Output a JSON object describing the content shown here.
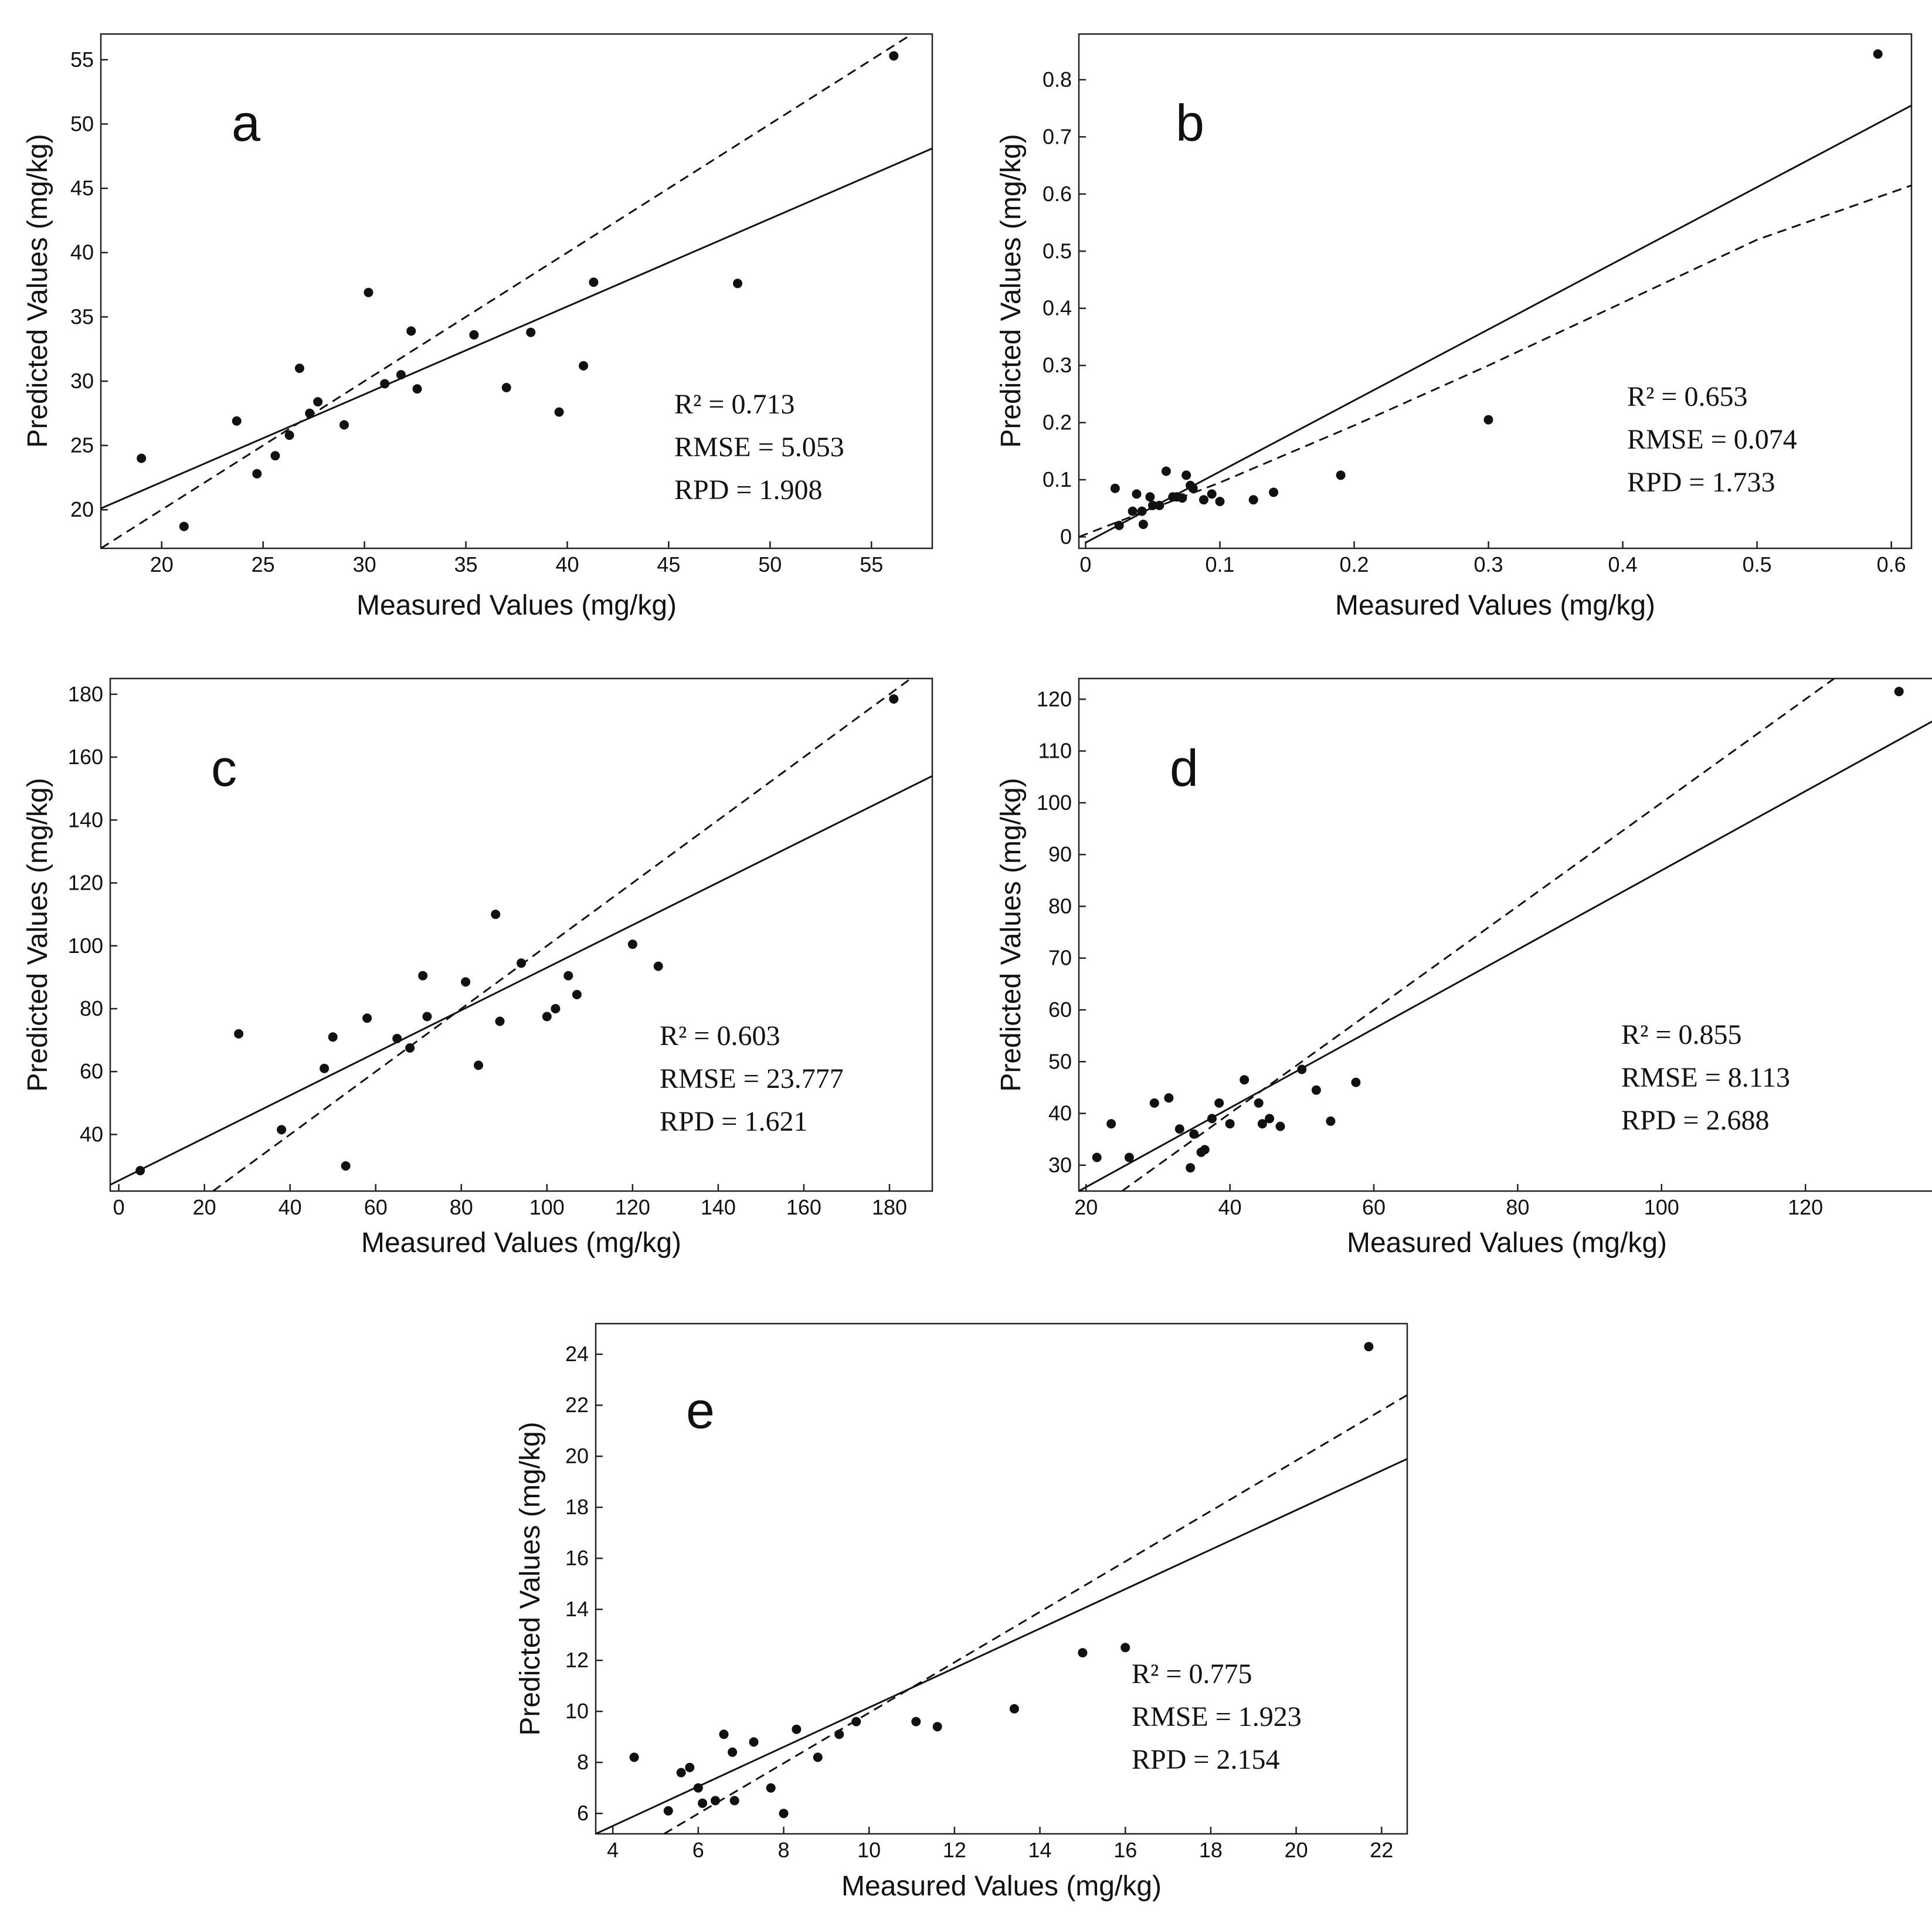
{
  "chart_data": [
    {
      "type": "scatter",
      "panel": "a",
      "xlabel": "Measured Values (mg/kg)",
      "ylabel": "Predicted Values (mg/kg)",
      "xlim": [
        17,
        58
      ],
      "ylim": [
        17,
        57
      ],
      "xticks": [
        20,
        25,
        30,
        35,
        40,
        45,
        50,
        55
      ],
      "yticks": [
        20,
        25,
        30,
        35,
        40,
        45,
        50,
        55
      ],
      "tick_labels_x": [
        "20",
        "25",
        "30",
        "35",
        "40",
        "45",
        "50",
        "55"
      ],
      "tick_labels_y": [
        "20",
        "25",
        "30",
        "35",
        "40",
        "45",
        "50",
        "55"
      ],
      "stats": {
        "r2": "R² = 0.713",
        "rmse": "RMSE = 5.053",
        "rpd": "RPD = 1.908"
      },
      "fit_line": [
        [
          17,
          20.1
        ],
        [
          58,
          48.1
        ]
      ],
      "dashed_line": [
        [
          17,
          17
        ],
        [
          58,
          58
        ]
      ],
      "x": [
        19.0,
        21.1,
        23.7,
        24.7,
        25.6,
        26.3,
        26.8,
        27.3,
        27.7,
        29.0,
        30.2,
        31.0,
        31.8,
        32.3,
        32.6,
        35.4,
        37.0,
        38.2,
        39.6,
        40.8,
        41.3,
        48.4,
        56.1
      ],
      "y": [
        24.0,
        18.7,
        26.9,
        22.8,
        24.2,
        25.8,
        31.0,
        27.5,
        28.4,
        26.6,
        36.9,
        29.8,
        30.5,
        33.9,
        29.4,
        33.6,
        29.5,
        33.8,
        27.6,
        31.2,
        37.7,
        37.6,
        55.3
      ]
    },
    {
      "type": "scatter",
      "panel": "b",
      "xlabel": "Measured Values (mg/kg)",
      "ylabel": "Predicted Values (mg/kg)",
      "xlim": [
        -0.005,
        0.615
      ],
      "ylim": [
        -0.02,
        0.88
      ],
      "xticks": [
        0,
        0.1,
        0.2,
        0.3,
        0.4,
        0.5,
        0.6
      ],
      "yticks": [
        0,
        0.1,
        0.2,
        0.3,
        0.4,
        0.5,
        0.6,
        0.7,
        0.8
      ],
      "tick_labels_x": [
        "0",
        "0.1",
        "0.2",
        "0.3",
        "0.4",
        "0.5",
        "0.6"
      ],
      "tick_labels_y": [
        "0",
        "0.1",
        "0.2",
        "0.3",
        "0.4",
        "0.5",
        "0.6",
        "0.7",
        "0.8"
      ],
      "stats": {
        "r2": "R² = 0.653",
        "rmse": "RMSE = 0.074",
        "rpd": "RPD = 1.733"
      },
      "fit_line": [
        [
          0,
          -0.01
        ],
        [
          0.615,
          0.755
        ]
      ],
      "dashed_line": [
        [
          -0.005,
          0.0
        ],
        [
          0.1,
          0.095
        ],
        [
          0.2,
          0.195
        ],
        [
          0.3,
          0.3
        ],
        [
          0.4,
          0.41
        ],
        [
          0.5,
          0.52
        ],
        [
          0.615,
          0.615
        ]
      ],
      "x": [
        0.022,
        0.025,
        0.035,
        0.038,
        0.042,
        0.043,
        0.048,
        0.05,
        0.055,
        0.06,
        0.065,
        0.068,
        0.072,
        0.075,
        0.078,
        0.08,
        0.088,
        0.094,
        0.1,
        0.125,
        0.14,
        0.19,
        0.3,
        0.59
      ],
      "y": [
        0.085,
        0.02,
        0.045,
        0.075,
        0.045,
        0.022,
        0.07,
        0.055,
        0.055,
        0.115,
        0.07,
        0.07,
        0.068,
        0.108,
        0.09,
        0.085,
        0.065,
        0.075,
        0.062,
        0.065,
        0.078,
        0.108,
        0.205,
        0.845
      ]
    },
    {
      "type": "scatter",
      "panel": "c",
      "xlabel": "Measured Values (mg/kg)",
      "ylabel": "Predicted Values (mg/kg)",
      "xlim": [
        -2,
        190
      ],
      "ylim": [
        22,
        185
      ],
      "xticks": [
        0,
        20,
        40,
        60,
        80,
        100,
        120,
        140,
        160,
        180
      ],
      "yticks": [
        40,
        60,
        80,
        100,
        120,
        140,
        160,
        180
      ],
      "tick_labels_x": [
        "0",
        "20",
        "40",
        "60",
        "80",
        "100",
        "120",
        "140",
        "160",
        "180"
      ],
      "tick_labels_y": [
        "40",
        "60",
        "80",
        "100",
        "120",
        "140",
        "160",
        "180"
      ],
      "stats": {
        "r2": "R² = 0.603",
        "rmse": "RMSE = 23.777",
        "rpd": "RPD = 1.621"
      },
      "fit_line": [
        [
          -2,
          24
        ],
        [
          190,
          154
        ]
      ],
      "dashed_line": [
        [
          22,
          22
        ],
        [
          190,
          190
        ]
      ],
      "x": [
        5,
        28,
        38,
        48,
        50,
        53,
        58,
        65,
        68,
        71,
        72,
        81,
        84,
        88,
        89,
        94,
        100,
        102,
        105,
        107,
        120,
        126,
        181
      ],
      "y": [
        28.5,
        72,
        41.5,
        61,
        71,
        30,
        77,
        70.5,
        67.5,
        90.5,
        77.5,
        88.5,
        62,
        110,
        76,
        94.5,
        77.5,
        80,
        90.5,
        84.5,
        100.5,
        93.5,
        178.5
      ]
    },
    {
      "type": "scatter",
      "panel": "d",
      "xlabel": "Measured Values (mg/kg)",
      "ylabel": "Predicted Values (mg/kg)",
      "xlim": [
        19,
        138
      ],
      "ylim": [
        25,
        124
      ],
      "xticks": [
        20,
        40,
        60,
        80,
        100,
        120
      ],
      "yticks": [
        30,
        40,
        50,
        60,
        70,
        80,
        90,
        100,
        110,
        120
      ],
      "tick_labels_x": [
        "20",
        "40",
        "60",
        "80",
        "100",
        "120"
      ],
      "tick_labels_y": [
        "30",
        "40",
        "50",
        "60",
        "70",
        "80",
        "90",
        "100",
        "110",
        "120"
      ],
      "stats": {
        "r2": "R² = 0.855",
        "rmse": "RMSE = 8.113",
        "rpd": "RPD = 2.688"
      },
      "fit_line": [
        [
          19,
          25
        ],
        [
          138,
          116
        ]
      ],
      "dashed_line": [
        [
          25,
          25
        ],
        [
          124,
          124
        ]
      ],
      "x": [
        21.5,
        23.5,
        26,
        29.5,
        31.5,
        33,
        34.5,
        35,
        36,
        36.5,
        37.5,
        38.5,
        40,
        42,
        44,
        44.5,
        45.5,
        47,
        50,
        52,
        54,
        57.5,
        133
      ],
      "y": [
        31.5,
        38,
        31.5,
        42,
        43,
        37,
        29.5,
        36,
        32.5,
        33,
        39,
        42,
        38,
        46.5,
        42,
        38,
        39,
        37.5,
        48.5,
        44.5,
        38.5,
        46,
        121.5
      ]
    },
    {
      "type": "scatter",
      "panel": "e",
      "xlabel": "Measured Values (mg/kg)",
      "ylabel": "Predicted Values (mg/kg)",
      "xlim": [
        3.6,
        22.6
      ],
      "ylim": [
        5.2,
        25.2
      ],
      "xticks": [
        4,
        6,
        8,
        10,
        12,
        14,
        16,
        18,
        20,
        22
      ],
      "yticks": [
        6,
        8,
        10,
        12,
        14,
        16,
        18,
        20,
        22,
        24
      ],
      "tick_labels_x": [
        "4",
        "6",
        "8",
        "10",
        "12",
        "14",
        "16",
        "18",
        "20",
        "22"
      ],
      "tick_labels_y": [
        "6",
        "8",
        "10",
        "12",
        "14",
        "16",
        "18",
        "20",
        "22",
        "24"
      ],
      "stats": {
        "r2": "R² = 0.775",
        "rmse": "RMSE = 1.923",
        "rpd": "RPD = 2.154"
      },
      "fit_line": [
        [
          3.6,
          5.2
        ],
        [
          22.6,
          19.9
        ]
      ],
      "dashed_line": [
        [
          5.2,
          5.2
        ],
        [
          22.6,
          22.4
        ]
      ],
      "x": [
        4.5,
        5.3,
        5.6,
        5.8,
        6.0,
        6.1,
        6.4,
        6.6,
        6.8,
        6.85,
        7.3,
        7.7,
        8.0,
        8.3,
        8.8,
        9.3,
        9.7,
        11.1,
        11.6,
        13.4,
        15.0,
        16.0,
        21.7
      ],
      "y": [
        8.2,
        6.1,
        7.6,
        7.8,
        7.0,
        6.4,
        6.5,
        9.1,
        8.4,
        6.5,
        8.8,
        7.0,
        6.0,
        9.3,
        8.2,
        9.1,
        9.6,
        9.6,
        9.4,
        10.1,
        12.3,
        12.5,
        24.3
      ]
    }
  ]
}
